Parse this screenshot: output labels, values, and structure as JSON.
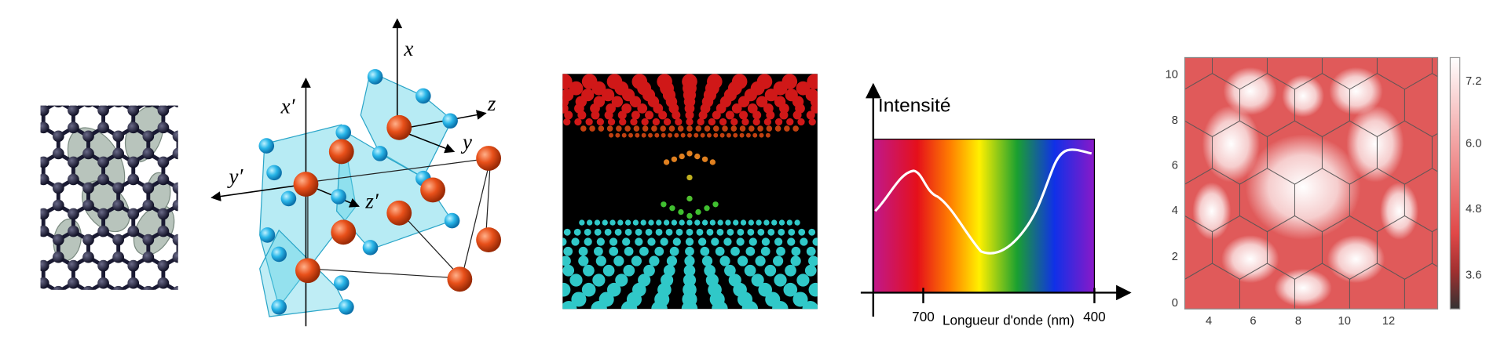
{
  "crystal": {
    "labels": [
      "x′",
      "x",
      "z",
      "y",
      "y′",
      "z′"
    ]
  },
  "spectrum": {
    "y_label": "Intensité",
    "x_label": "Longueur d'onde (nm)",
    "x_ticks": [
      "700",
      "400"
    ]
  },
  "map": {
    "y_ticks": [
      "0",
      "2",
      "4",
      "6",
      "8",
      "10"
    ],
    "x_ticks": [
      "4",
      "6",
      "8",
      "10",
      "12"
    ],
    "colorbar_ticks": [
      "7.2",
      "6.0",
      "4.8",
      "3.6"
    ]
  }
}
